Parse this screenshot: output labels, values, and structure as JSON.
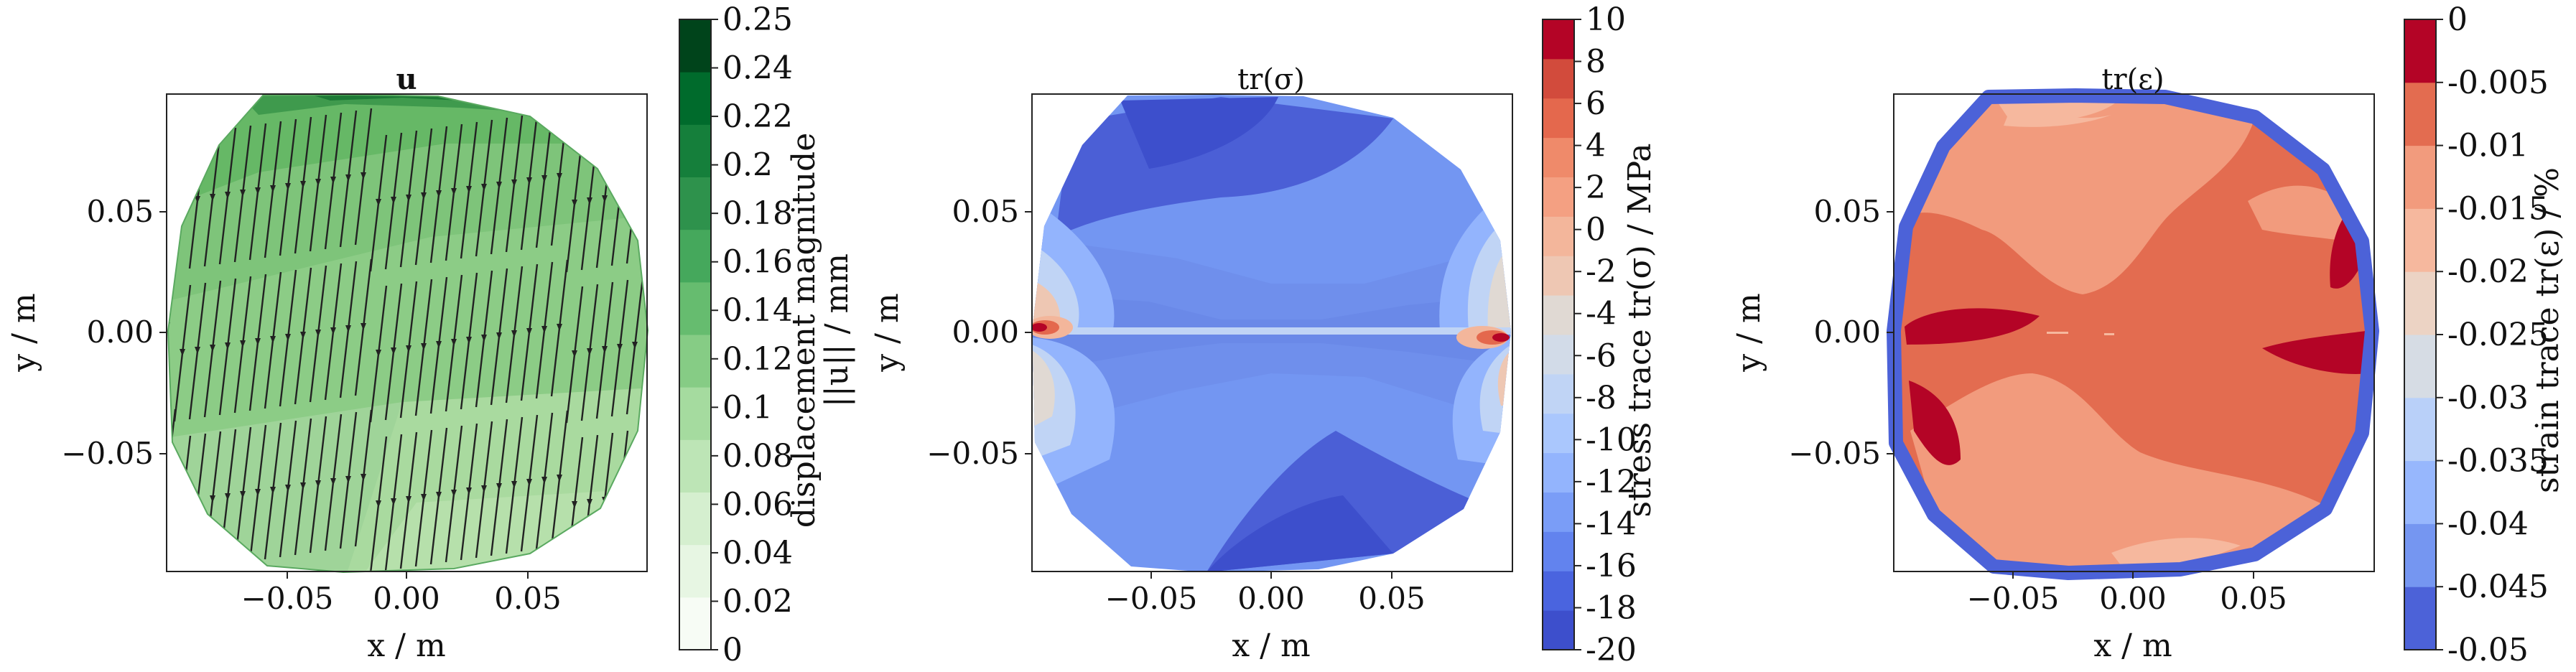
{
  "chart_data": [
    {
      "type": "heatmap",
      "title": "u",
      "xlabel": "x / m",
      "ylabel": "y / m",
      "xlim": [
        -0.1,
        0.1
      ],
      "ylim": [
        -0.1,
        0.1
      ],
      "x_ticks": [
        "−0.05",
        "0.00",
        "0.05"
      ],
      "y_ticks": [
        "0.05",
        "0.00",
        "−0.05"
      ],
      "field": "displacement magnitude",
      "colorbar": {
        "label_line1": "displacement magnitude",
        "label_line2": "||u|| / mm",
        "ticks": [
          "0.25",
          "0.24",
          "0.22",
          "0.2",
          "0.18",
          "0.16",
          "0.14",
          "0.12",
          "0.1",
          "0.08",
          "0.06",
          "0.04",
          "0.02",
          "0"
        ],
        "colors": [
          "#f7fcf5",
          "#e7f6e3",
          "#d5efcf",
          "#bde5b6",
          "#a5db9f",
          "#86cc85",
          "#66bc6f",
          "#45a85c",
          "#2e924c",
          "#157f3b",
          "#006b2c",
          "#00441b"
        ]
      },
      "vector_overlay": "displacement arrows",
      "colormap": "Greens"
    },
    {
      "type": "heatmap",
      "title": "tr(σ)",
      "xlabel": "x / m",
      "ylabel": "y / m",
      "xlim": [
        -0.1,
        0.1
      ],
      "ylim": [
        -0.1,
        0.1
      ],
      "x_ticks": [
        "−0.05",
        "0.00",
        "0.05"
      ],
      "y_ticks": [
        "0.05",
        "0.00",
        "−0.05"
      ],
      "field": "stress trace",
      "colorbar": {
        "label": "stress trace tr(σ) / MPa",
        "ticks": [
          "10",
          "8",
          "6",
          "4",
          "2",
          "0",
          "-2",
          "-4",
          "-6",
          "-8",
          "-10",
          "-12",
          "-14",
          "-16",
          "-18",
          "-20"
        ],
        "colors": [
          "#3d4fcc",
          "#4a64df",
          "#6283ee",
          "#7a9df7",
          "#93b4fd",
          "#aac7fd",
          "#c0d4f5",
          "#d2dbe8",
          "#e0d9d3",
          "#eec7b3",
          "#f3b69b",
          "#f4a082",
          "#ef8a6a",
          "#e4684d",
          "#d24b3c",
          "#b40426"
        ]
      },
      "colormap": "coolwarm"
    },
    {
      "type": "heatmap",
      "title": "tr(ε)",
      "xlabel": "x / m",
      "ylabel": "y / m",
      "xlim": [
        -0.1,
        0.1
      ],
      "ylim": [
        -0.1,
        0.1
      ],
      "x_ticks": [
        "−0.05",
        "0.00",
        "0.05"
      ],
      "y_ticks": [
        "0.05",
        "0.00",
        "−0.05"
      ],
      "field": "strain trace",
      "colorbar": {
        "label": "strain trace tr(ε) / %",
        "ticks": [
          "0",
          "-0.005",
          "-0.01",
          "-0.015",
          "-0.02",
          "-0.025",
          "-0.03",
          "-0.035",
          "-0.04",
          "-0.045",
          "-0.05"
        ],
        "colors": [
          "#4c62d8",
          "#7596f1",
          "#97b7fd",
          "#b9d0f9",
          "#d6dce4",
          "#ecd3c4",
          "#f6b89e",
          "#f29b7d",
          "#e36c50",
          "#b40426"
        ]
      },
      "colormap": "coolwarm"
    }
  ]
}
